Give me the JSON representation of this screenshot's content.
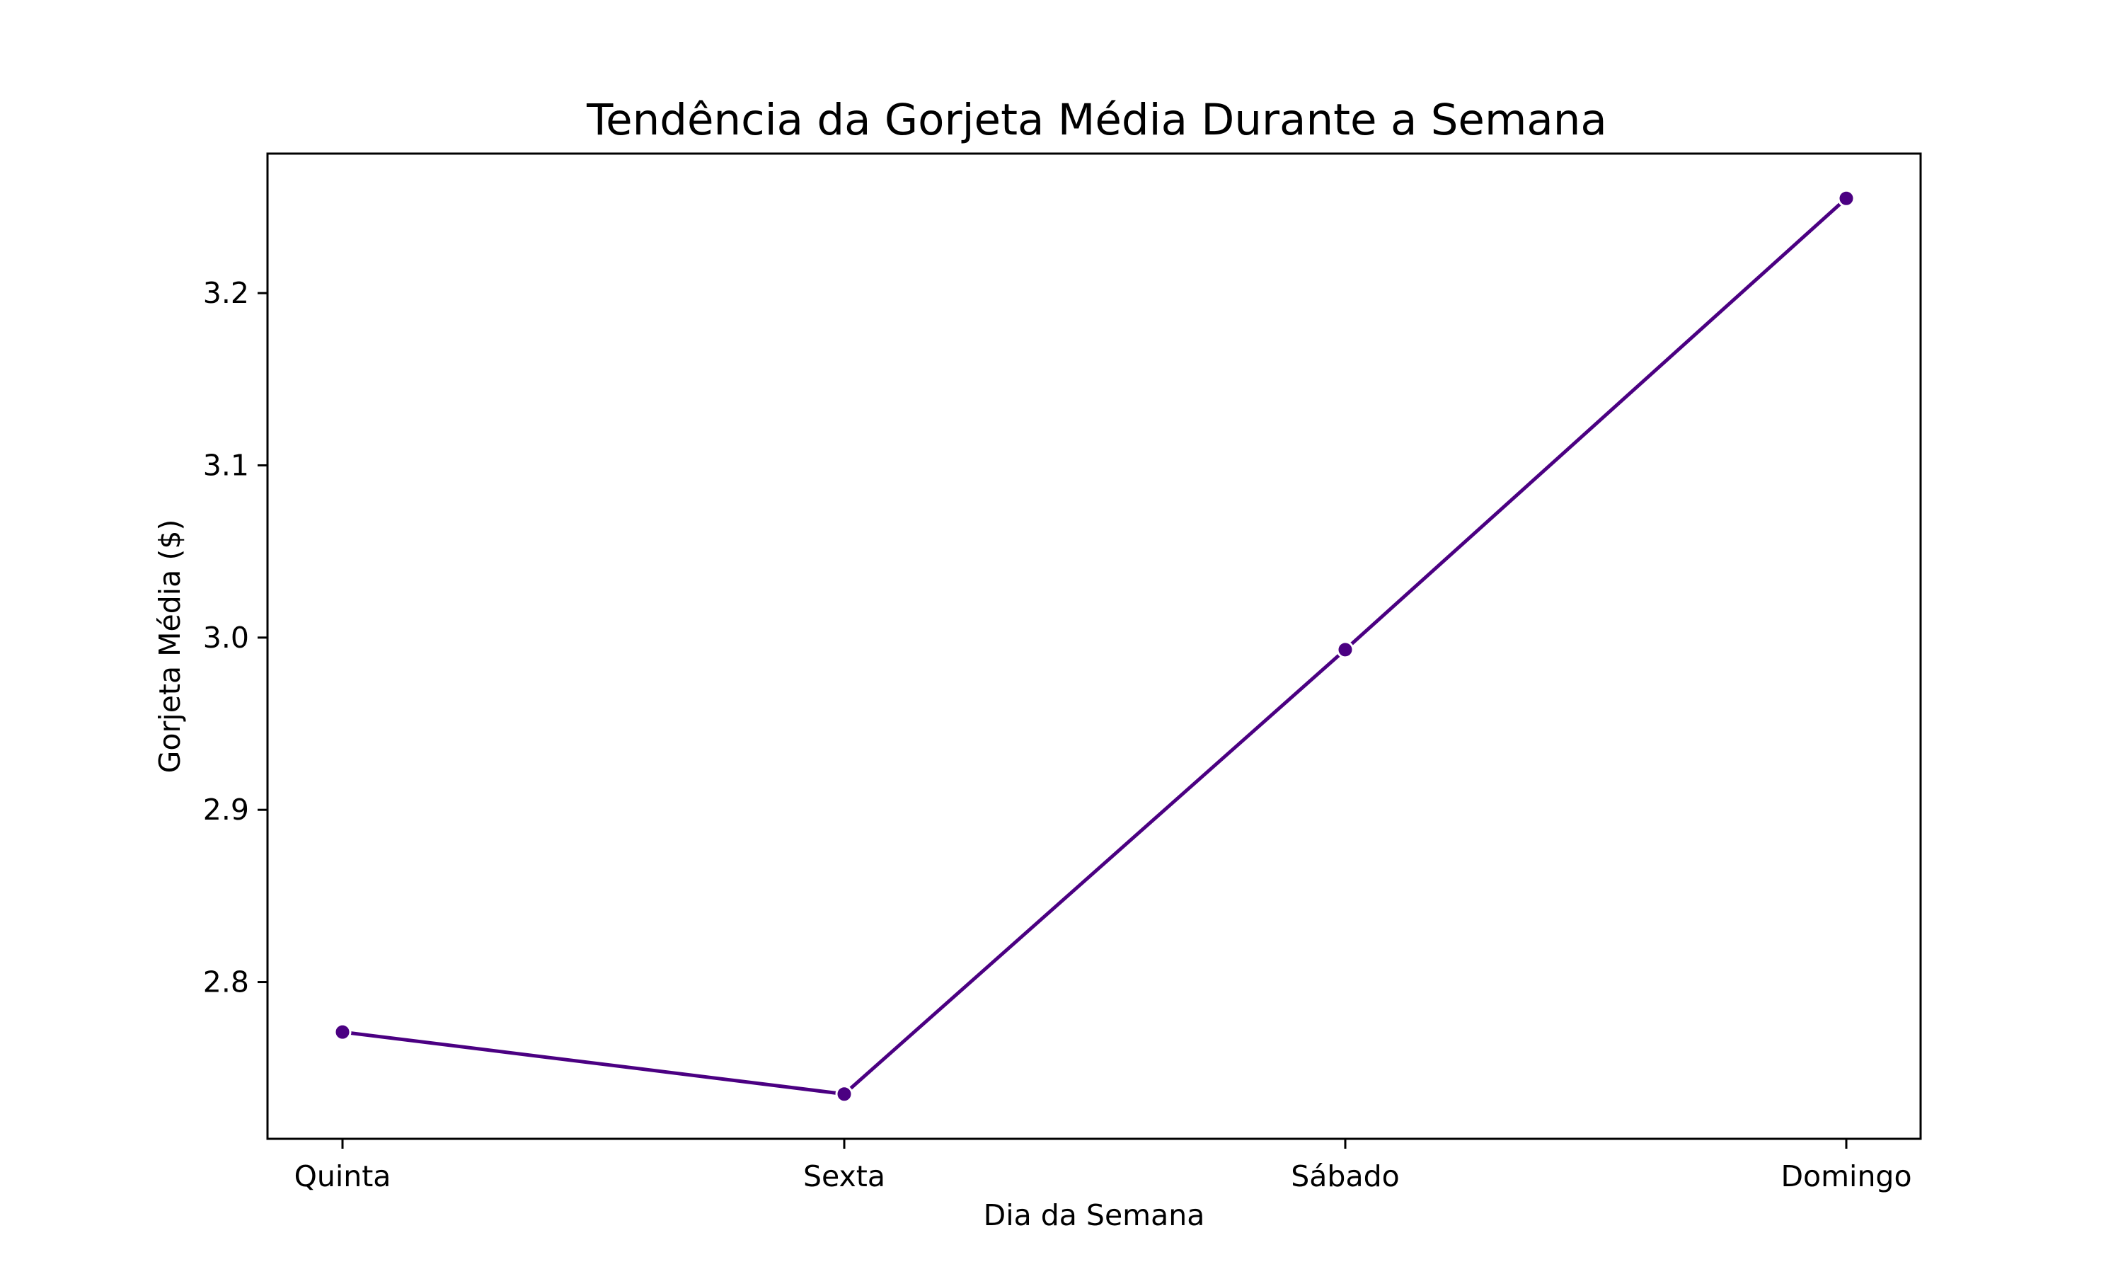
{
  "chart_data": {
    "type": "line",
    "title": "Tendência da Gorjeta Média Durante a Semana",
    "xlabel": "Dia da Semana",
    "ylabel": "Gorjeta Média ($)",
    "categories": [
      "Quinta",
      "Sexta",
      "Sábado",
      "Domingo"
    ],
    "series": [
      {
        "values": [
          2.771,
          2.735,
          2.993,
          3.255
        ]
      }
    ],
    "ylim": [
      2.709,
      3.281
    ],
    "yticks": [
      2.8,
      2.9,
      3.0,
      3.1,
      3.2
    ],
    "ytick_labels": [
      "2.8",
      "2.9",
      "3.0",
      "3.1",
      "3.2"
    ],
    "grid": false,
    "line_color": "#4b0082",
    "marker": "circle"
  }
}
